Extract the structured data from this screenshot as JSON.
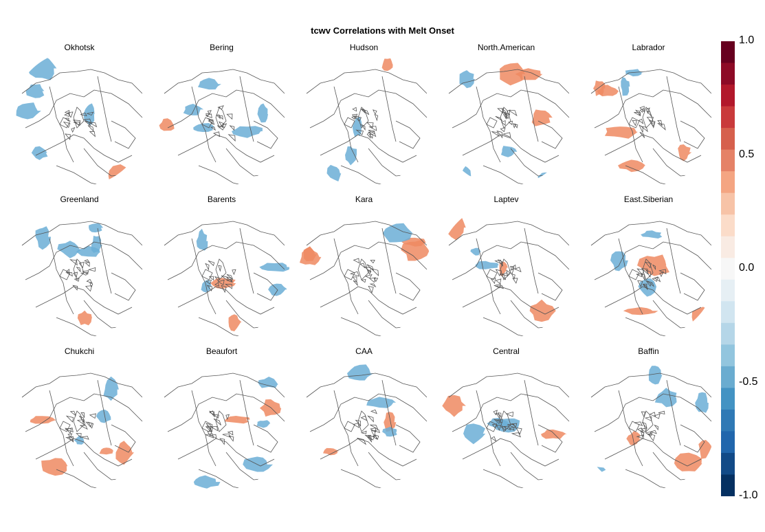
{
  "title": "tcwv Correlations with Melt Onset",
  "panels": [
    {
      "label": "Okhotsk"
    },
    {
      "label": "Bering"
    },
    {
      "label": "Hudson"
    },
    {
      "label": "North.American"
    },
    {
      "label": "Labrador"
    },
    {
      "label": "Greenland"
    },
    {
      "label": "Barents"
    },
    {
      "label": "Kara"
    },
    {
      "label": "Laptev"
    },
    {
      "label": "East.Siberian"
    },
    {
      "label": "Chukchi"
    },
    {
      "label": "Beaufort"
    },
    {
      "label": "CAA"
    },
    {
      "label": "Central"
    },
    {
      "label": "Baffin"
    }
  ],
  "colorbar": {
    "min": -1.0,
    "max": 1.0,
    "ticks": [
      "1.0",
      "0.5",
      "0.0",
      "-0.5",
      "-1.0"
    ],
    "colors": [
      "#67001f",
      "#8d0a26",
      "#b2182b",
      "#c93a3b",
      "#d6604d",
      "#e58267",
      "#f4a582",
      "#f7c3a7",
      "#fbdcc9",
      "#f9ebe3",
      "#f7f7f7",
      "#e6eff4",
      "#d1e5f0",
      "#b5d6e8",
      "#92c5de",
      "#6aacd0",
      "#4393c3",
      "#2f79b5",
      "#2166ac",
      "#124a87",
      "#053061"
    ]
  },
  "legend_color_neg": "#6baed6",
  "legend_color_pos": "#ef8a62"
}
